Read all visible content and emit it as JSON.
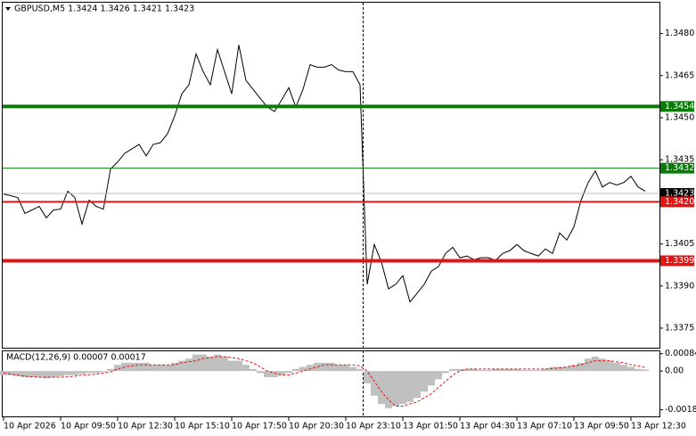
{
  "chart_data": [
    {
      "type": "line",
      "title": "GBPUSD,M5  1.3424 1.3426 1.3421 1.3423",
      "color": "#000000",
      "categories": [
        "10 Apr 2026",
        null,
        null,
        null,
        null,
        null,
        null,
        null,
        "10 Apr 09:50",
        null,
        null,
        null,
        null,
        null,
        null,
        null,
        "10 Apr 12:30",
        null,
        null,
        null,
        null,
        null,
        null,
        null,
        "10 Apr 15:10",
        null,
        null,
        null,
        null,
        null,
        null,
        null,
        "10 Apr 17:50",
        null,
        null,
        null,
        null,
        null,
        null,
        null,
        "10 Apr 20:30",
        null,
        null,
        null,
        null,
        null,
        null,
        null,
        "10 Apr 23:10",
        null,
        null,
        null,
        null,
        null,
        null,
        null,
        "13 Apr 01:50",
        null,
        null,
        null,
        null,
        null,
        null,
        null,
        "13 Apr 04:30",
        null,
        null,
        null,
        null,
        null,
        null,
        null,
        "13 Apr 07:10",
        null,
        null,
        null,
        null,
        null,
        null,
        null,
        "13 Apr 09:50",
        null,
        null,
        null,
        null,
        null,
        null,
        null,
        "13 Apr 12:30",
        null,
        null
      ],
      "values": [
        1.34228,
        1.34222,
        1.34215,
        1.34159,
        1.34171,
        1.34184,
        1.34143,
        1.34171,
        1.34174,
        1.34238,
        1.34215,
        1.34121,
        1.34206,
        1.34184,
        1.34174,
        1.34317,
        1.34342,
        1.34373,
        1.34389,
        1.34405,
        1.34364,
        1.34405,
        1.34411,
        1.34443,
        1.34506,
        1.34585,
        1.34617,
        1.34727,
        1.34664,
        1.34617,
        1.34743,
        1.34664,
        1.34585,
        1.34759,
        1.34633,
        1.34601,
        1.34569,
        1.34538,
        1.34522,
        1.34563,
        1.34607,
        1.34538,
        1.34601,
        1.34689,
        1.3468,
        1.3468,
        1.34689,
        1.3467,
        1.34664,
        1.34664,
        1.34617,
        1.33906,
        1.34048,
        1.33985,
        1.3389,
        1.33906,
        1.33937,
        1.33843,
        1.33874,
        1.33906,
        1.33953,
        1.33969,
        1.34016,
        1.34038,
        1.34001,
        1.34007,
        1.33994,
        1.34001,
        1.34001,
        1.33991,
        1.34016,
        1.34026,
        1.34048,
        1.34026,
        1.34016,
        1.34007,
        1.34032,
        1.34016,
        1.34089,
        1.34064,
        1.34111,
        1.34206,
        1.34269,
        1.3431,
        1.34253,
        1.34269,
        1.3426,
        1.34269,
        1.34291,
        1.34253,
        1.34238
      ],
      "ylim": [
        1.3368,
        1.3491
      ],
      "yticks": [
        {
          "value": 1.348,
          "label": "1.3480"
        },
        1.3465,
        {
          "value": 1.345,
          "label": "1.3450"
        },
        1.3435,
        1.3405,
        {
          "value": 1.339,
          "label": "1.3390"
        },
        1.3375
      ],
      "levels": [
        {
          "value": 1.3454,
          "color": "#0b7a0b",
          "weight": "thick"
        },
        {
          "value": 1.3432,
          "color": "#0b7a0b",
          "weight": "thin"
        },
        {
          "value": 1.342,
          "label": "1.3420",
          "color": "#e31414",
          "weight": "medium"
        },
        {
          "value": 1.3399,
          "color": "#e31414",
          "weight": "thick"
        }
      ],
      "last_price": 1.3423
    },
    {
      "type": "bar",
      "title": "MACD(12,26,9) 0.00007 0.00017",
      "ylim": [
        -0.0022,
        0.001
      ],
      "yticks": [
        0.00084,
        {
          "value": 0,
          "label": "0.00"
        },
        -0.00188
      ],
      "series": [
        {
          "type": "bar",
          "color": "#c0c0c0",
          "values": [
            -0.0002,
            -0.0002,
            -0.00025,
            -0.0003,
            -0.0003,
            -0.0003,
            -0.00035,
            -0.0003,
            -0.00025,
            -0.0002,
            -0.0002,
            -0.00015,
            -0.0001,
            -0.0001,
            -5e-05,
            0.0001,
            0.0003,
            0.0004,
            0.0004,
            0.0004,
            0.0004,
            0.0003,
            0.0003,
            0.0003,
            0.0004,
            0.0005,
            0.0006,
            0.0008,
            0.0008,
            0.0007,
            0.0008,
            0.0007,
            0.0005,
            0.0005,
            0.0003,
            0.0001,
            -0.0001,
            -0.0003,
            -0.0003,
            -0.0002,
            -0.0001,
            0.0001,
            0.0002,
            0.0003,
            0.0004,
            0.0004,
            0.0004,
            0.0003,
            0.0003,
            0.0002,
            0.0001,
            -0.0006,
            -0.0012,
            -0.0016,
            -0.0018,
            -0.0017,
            -0.0016,
            -0.0015,
            -0.0013,
            -0.001,
            -0.0007,
            -0.0004,
            -0.0001,
            0.0001,
            0.0001,
            0.0001,
            0.0001,
            5e-05,
            5e-05,
            0.0001,
            0.0001,
            0.0001,
            0.0001,
            5e-05,
            5e-05,
            5e-05,
            0.0001,
            0.0002,
            0.0002,
            0.0002,
            0.0003,
            0.0004,
            0.0006,
            0.0007,
            0.0006,
            0.0005,
            0.0004,
            0.0003,
            0.0002,
            0.0001,
            7e-05
          ]
        },
        {
          "type": "line",
          "color": "#e31414",
          "dashed": true,
          "values": [
            -0.0001,
            -0.00015,
            -0.0002,
            -0.00025,
            -0.00028,
            -0.0003,
            -0.0003,
            -0.0003,
            -0.0003,
            -0.00028,
            -0.00025,
            -0.0002,
            -0.00018,
            -0.00015,
            -0.0001,
            -5e-05,
            0.0001,
            0.0002,
            0.00025,
            0.0003,
            0.0003,
            0.0003,
            0.0003,
            0.0003,
            0.0003,
            0.0004,
            0.00045,
            0.0005,
            0.0006,
            0.00065,
            0.0007,
            0.0007,
            0.00065,
            0.0006,
            0.0005,
            0.0004,
            0.0002,
            0,
            -0.0001,
            -0.0002,
            -0.0002,
            -0.0001,
            0,
            0.0001,
            0.0002,
            0.0003,
            0.0003,
            0.0003,
            0.0003,
            0.0003,
            0.00025,
            0,
            -0.0005,
            -0.001,
            -0.0014,
            -0.0017,
            -0.0017,
            -0.0016,
            -0.0015,
            -0.0013,
            -0.0011,
            -0.0008,
            -0.0005,
            -0.0002,
            0,
            0.0001,
            0.0001,
            0.0001,
            0.0001,
            0.0001,
            0.0001,
            0.0001,
            0.0001,
            0.0001,
            0.0001,
            0.0001,
            0.0001,
            0.00012,
            0.00015,
            0.0002,
            0.00025,
            0.0003,
            0.0004,
            0.0005,
            0.0005,
            0.0005,
            0.00045,
            0.0004,
            0.0003,
            0.00025,
            0.00017
          ]
        }
      ]
    }
  ]
}
